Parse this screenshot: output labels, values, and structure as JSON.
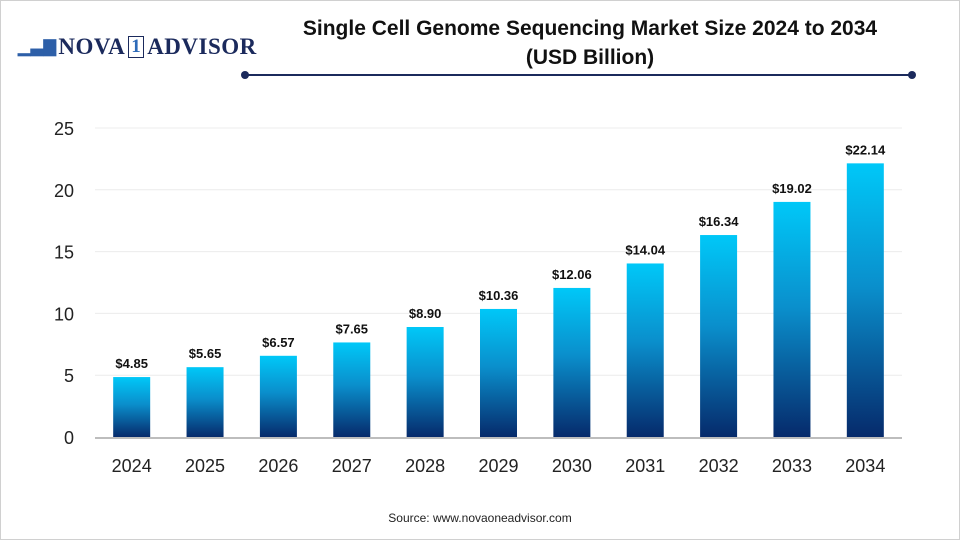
{
  "logo_text": "NOVA 1 ADVISOR",
  "source": "Source: www.novaoneadvisor.com",
  "colors": {
    "bar_top": "#00c8f8",
    "bar_bottom": "#062a6b",
    "title_rule": "#1b2a5c"
  },
  "chart_data": {
    "type": "bar",
    "title_line1": "Single Cell Genome Sequencing Market  Size 2024 to 2034",
    "title_line2": "(USD Billion)",
    "categories": [
      "2024",
      "2025",
      "2026",
      "2027",
      "2028",
      "2029",
      "2030",
      "2031",
      "2032",
      "2033",
      "2034"
    ],
    "values": [
      4.85,
      5.65,
      6.57,
      7.65,
      8.9,
      10.36,
      12.06,
      14.04,
      16.34,
      19.02,
      22.14
    ],
    "data_labels": [
      "$4.85",
      "$5.65",
      "$6.57",
      "$7.65",
      "$8.90",
      "$10.36",
      "$12.06",
      "$14.04",
      "$16.34",
      "$19.02",
      "$22.14"
    ],
    "yticks": [
      0,
      5,
      10,
      15,
      20,
      25
    ],
    "ylim": [
      0,
      25
    ],
    "grid": true,
    "xlabel": "",
    "ylabel": ""
  }
}
